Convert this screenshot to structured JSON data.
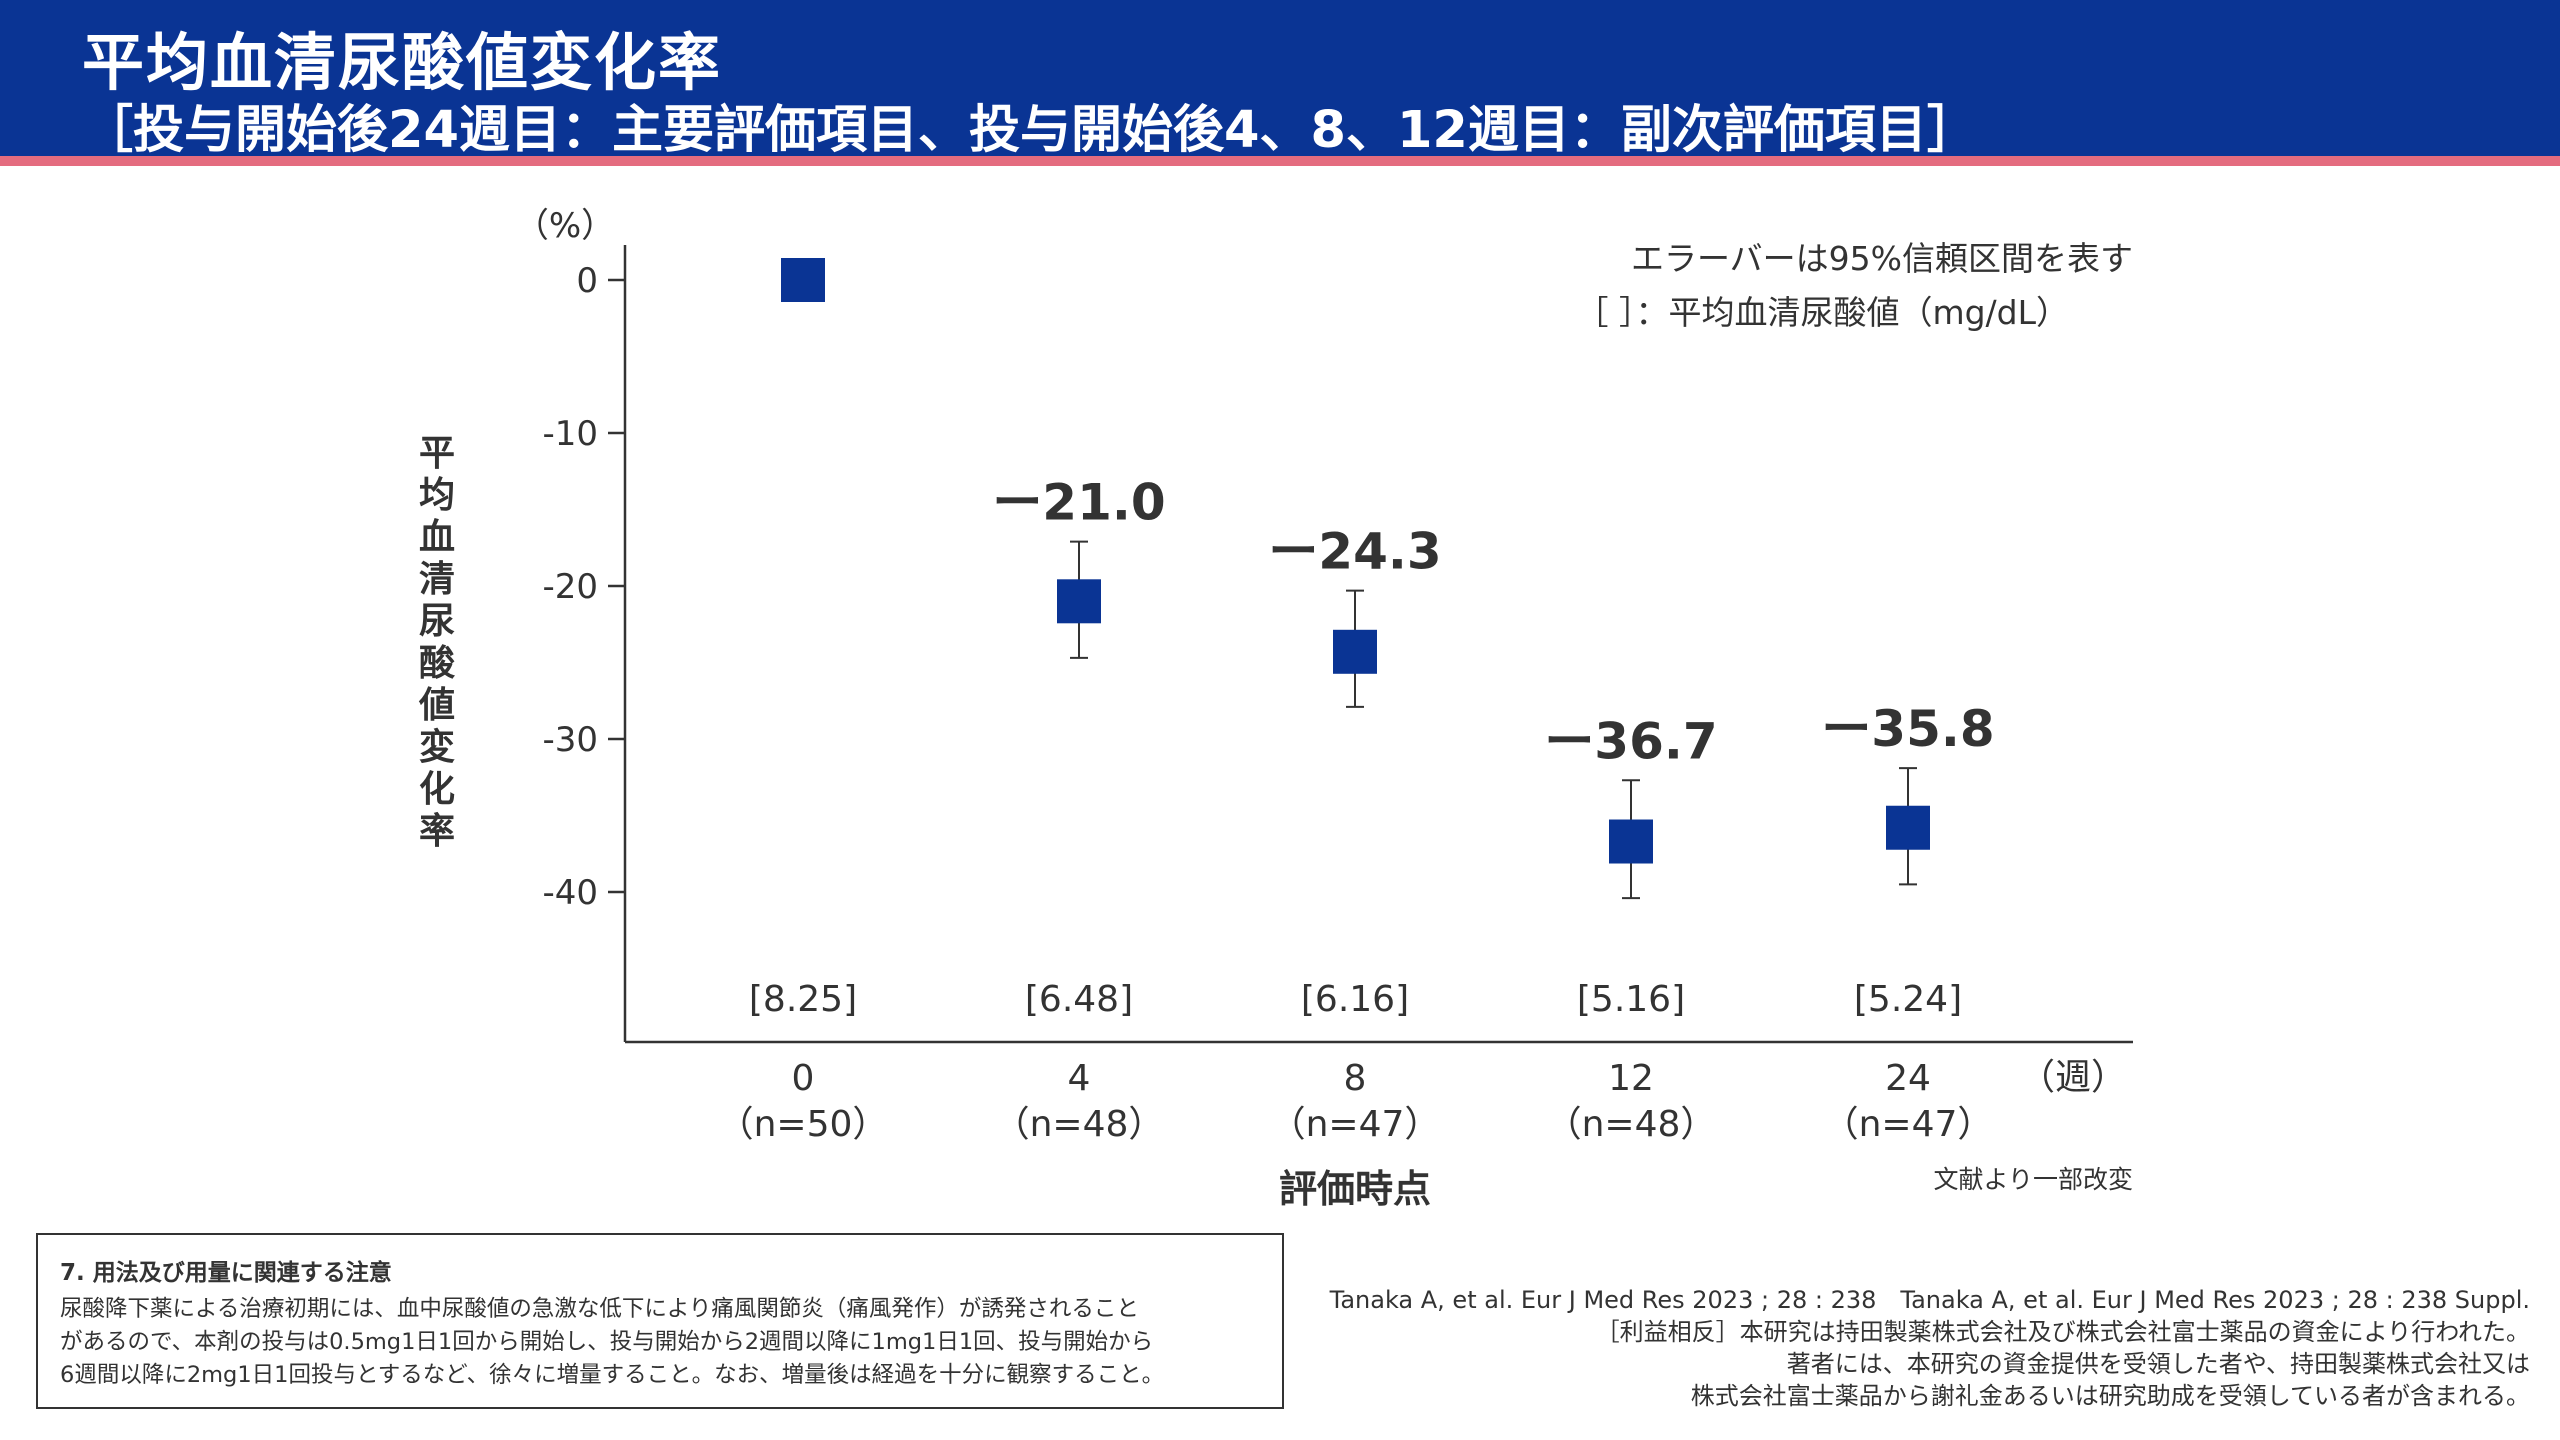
{
  "header": {
    "title": "平均血清尿酸値変化率",
    "subtitle": "［投与開始後24週目：主要評価項目、投与開始後4、8、12週目：副次評価項目］"
  },
  "colors": {
    "header_bg": "#0a3494",
    "stripe": "#e46c7f",
    "marker": "#0a3494"
  },
  "chart_data": {
    "type": "scatter",
    "x": [
      "0",
      "4",
      "8",
      "12",
      "24"
    ],
    "n_labels": [
      "（n=50）",
      "（n=48）",
      "（n=47）",
      "（n=48）",
      "（n=47）"
    ],
    "values": [
      0,
      -21.0,
      -24.3,
      -36.7,
      -35.8
    ],
    "ci_upper": [
      0,
      -17.1,
      -20.3,
      -32.7,
      -31.9
    ],
    "ci_lower": [
      0,
      -24.7,
      -27.9,
      -40.4,
      -39.5
    ],
    "value_labels": [
      "",
      "ー21.0",
      "ー24.3",
      "ー36.7",
      "ー35.8"
    ],
    "mean_uric_acid": [
      "[8.25]",
      "[6.48]",
      "[6.16]",
      "[5.16]",
      "[5.24]"
    ],
    "yticks": [
      0,
      -10,
      -20,
      -30,
      -40
    ],
    "ytick_labels": [
      "0",
      "-10",
      "-20",
      "-30",
      "-40"
    ],
    "ylim": [
      -50,
      2.5
    ],
    "y_unit": "（%）",
    "ylabel": "平均血清尿酸値変化率",
    "xlabel": "評価時点",
    "x_unit": "（週）",
    "legend_lines": [
      "エラーバーは95%信頼区間を表す",
      "［ ］：平均血清尿酸値（mg/dL）"
    ],
    "legend_position": "top-right",
    "grid": false,
    "source_note": "文献より一部改変"
  },
  "caution": {
    "title": "7. 用法及び用量に関連する注意",
    "lines": [
      "尿酸降下薬による治療初期には、血中尿酸値の急激な低下により痛風関節炎（痛風発作）が誘発されること",
      "があるので、本剤の投与は0.5mg1日1回から開始し、投与開始から2週間以降に1mg1日1回、投与開始から",
      "6週間以降に2mg1日1回投与とするなど、徐々に増量すること。なお、増量後は経過を十分に観察すること。"
    ]
  },
  "references": {
    "citation": "Tanaka A, et al. Eur J Med Res 2023 ; 28 : 238　Tanaka A, et al. Eur J Med Res 2023 ; 28 : 238 Suppl.",
    "coi_lines": [
      "［利益相反］本研究は持田製薬株式会社及び株式会社富士薬品の資金により行われた。",
      "著者には、本研究の資金提供を受領した者や、持田製薬株式会社又は",
      "株式会社富士薬品から謝礼金あるいは研究助成を受領している者が含まれる。"
    ]
  }
}
